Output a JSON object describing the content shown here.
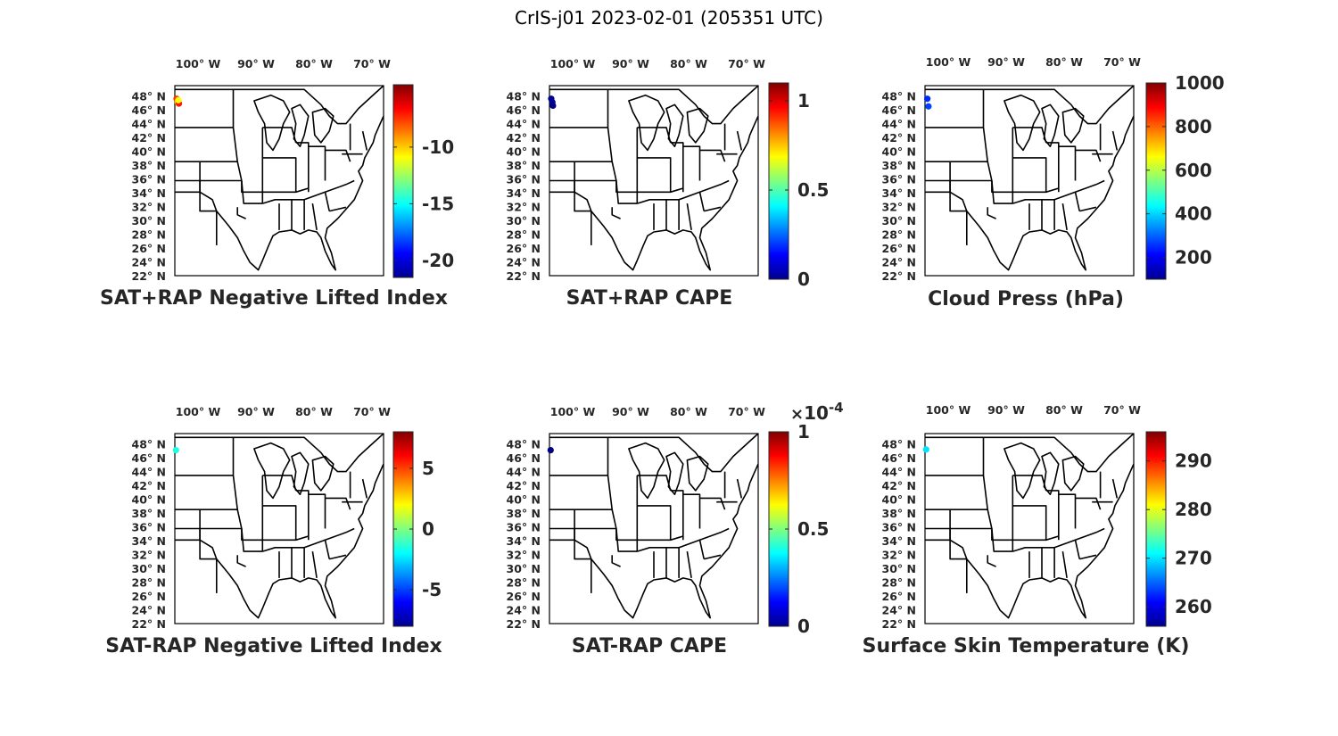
{
  "figure": {
    "title": "CrIS-j01 2023-02-01 (205351 UTC)"
  },
  "map_axes": {
    "lon_ticks": [
      "100° W",
      "90° W",
      "80° W",
      "70° W"
    ],
    "lat_ticks": [
      "48° N",
      "46° N",
      "44° N",
      "42° N",
      "40° N",
      "38° N",
      "36° N",
      "34° N",
      "32° N",
      "30° N",
      "28° N",
      "26° N",
      "24° N",
      "22° N"
    ],
    "lon_range": [
      -104,
      -68
    ],
    "lat_range": [
      22,
      49.5
    ]
  },
  "panels": [
    {
      "title": "SAT+RAP Negative Lifted Index",
      "colorbar": {
        "min": -21.5,
        "max": -4.5,
        "ticks": [
          -10,
          -15,
          -20
        ],
        "tick_labels": [
          "-10",
          "-15",
          "-20"
        ],
        "multiplier": ""
      },
      "points": [
        {
          "lon": -103.7,
          "lat": 47.6,
          "value": -7.5
        },
        {
          "lon": -103.5,
          "lat": 47.1,
          "value": -9.5
        },
        {
          "lon": -103.3,
          "lat": 46.9,
          "value": -7.0
        },
        {
          "lon": -103.4,
          "lat": 47.4,
          "value": -11.0
        }
      ]
    },
    {
      "title": "SAT+RAP CAPE",
      "colorbar": {
        "min": 0,
        "max": 1.1,
        "ticks": [
          1,
          0.5,
          0
        ],
        "tick_labels": [
          "1",
          "0.5",
          "0"
        ],
        "multiplier": ""
      },
      "points": [
        {
          "lon": -103.7,
          "lat": 47.6,
          "value": 0.02
        },
        {
          "lon": -103.5,
          "lat": 47.1,
          "value": 0.03
        },
        {
          "lon": -103.4,
          "lat": 46.6,
          "value": 0.01
        }
      ]
    },
    {
      "title": "Cloud Press (hPa)",
      "colorbar": {
        "min": 100,
        "max": 1000,
        "ticks": [
          1000,
          800,
          600,
          400,
          200
        ],
        "tick_labels": [
          "1000",
          "800",
          "600",
          "400",
          "200"
        ],
        "multiplier": ""
      },
      "points": [
        {
          "lon": -103.6,
          "lat": 47.6,
          "value": 250
        },
        {
          "lon": -103.4,
          "lat": 46.5,
          "value": 270
        }
      ]
    },
    {
      "title": "SAT-RAP Negative Lifted Index",
      "colorbar": {
        "min": -8,
        "max": 8,
        "ticks": [
          5,
          0,
          -5
        ],
        "tick_labels": [
          "5",
          "0",
          "-5"
        ],
        "multiplier": ""
      },
      "points": [
        {
          "lon": -103.8,
          "lat": 47.1,
          "value": -1.5
        }
      ]
    },
    {
      "title": "SAT-RAP CAPE",
      "colorbar": {
        "min": 0,
        "max": 1,
        "ticks": [
          1,
          0.5,
          0
        ],
        "tick_labels": [
          "1",
          "0.5",
          "0"
        ],
        "multiplier": "×10-4"
      },
      "points": [
        {
          "lon": -103.8,
          "lat": 47.1,
          "value": 0.0
        }
      ]
    },
    {
      "title": "Surface Skin Temperature (K)",
      "colorbar": {
        "min": 256,
        "max": 296,
        "ticks": [
          290,
          280,
          270,
          260
        ],
        "tick_labels": [
          "290",
          "280",
          "270",
          "260"
        ],
        "multiplier": ""
      },
      "points": [
        {
          "lon": -103.8,
          "lat": 47.2,
          "value": 270
        }
      ]
    }
  ]
}
